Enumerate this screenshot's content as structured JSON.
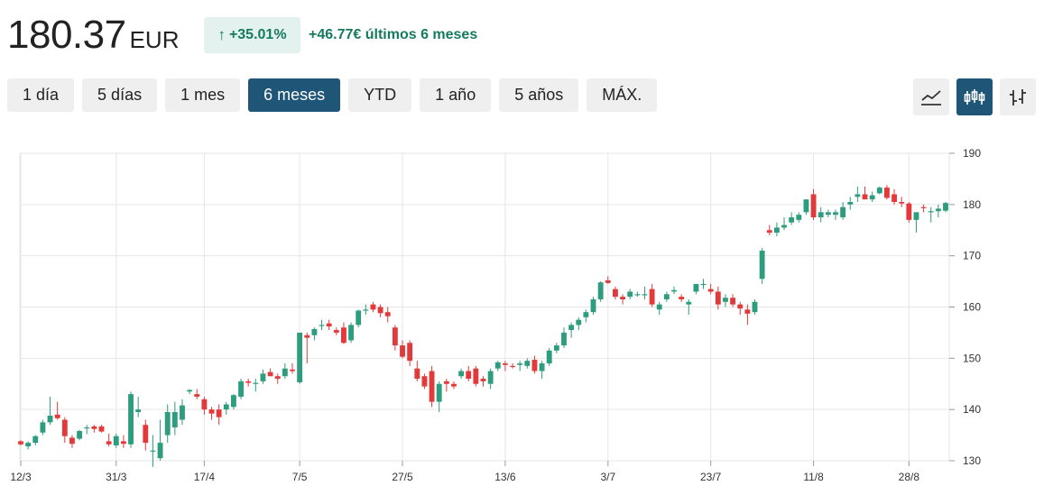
{
  "header": {
    "price": "180.37",
    "currency": "EUR",
    "change_pct": "+35.01%",
    "change_arrow": "↑",
    "change_text": "+46.77€ últimos 6 meses"
  },
  "ranges": [
    {
      "label": "1 día",
      "active": false
    },
    {
      "label": "5 días",
      "active": false
    },
    {
      "label": "1 mes",
      "active": false
    },
    {
      "label": "6 meses",
      "active": true
    },
    {
      "label": "YTD",
      "active": false
    },
    {
      "label": "1 año",
      "active": false
    },
    {
      "label": "5 años",
      "active": false
    },
    {
      "label": "MÁX.",
      "active": false
    }
  ],
  "views": [
    {
      "icon": "line-chart-icon",
      "active": false
    },
    {
      "icon": "candlestick-chart-icon",
      "active": true
    },
    {
      "icon": "ohlc-chart-icon",
      "active": false
    }
  ],
  "colors": {
    "up": "#2e9c7e",
    "down": "#e23a3a",
    "accent": "#1f5577",
    "positive_text": "#167a5e"
  },
  "chart_data": {
    "type": "candlestick",
    "y_range": [
      130,
      190
    ],
    "y_ticks": [
      130,
      140,
      150,
      160,
      170,
      180,
      190
    ],
    "x_ticks": [
      {
        "label": "12/3",
        "index": 0
      },
      {
        "label": "31/3",
        "index": 13
      },
      {
        "label": "17/4",
        "index": 25
      },
      {
        "label": "7/5",
        "index": 38
      },
      {
        "label": "27/5",
        "index": 52
      },
      {
        "label": "13/6",
        "index": 66
      },
      {
        "label": "3/7",
        "index": 80
      },
      {
        "label": "23/7",
        "index": 94
      },
      {
        "label": "11/8",
        "index": 108
      },
      {
        "label": "28/8",
        "index": 121
      }
    ],
    "candles": [
      [
        133.8,
        134,
        133,
        133.2
      ],
      [
        132.8,
        133.8,
        132.2,
        133.5
      ],
      [
        133.5,
        135,
        133,
        134.8
      ],
      [
        135.5,
        138,
        135,
        137.5
      ],
      [
        137.5,
        142.5,
        137,
        138.8
      ],
      [
        139,
        141.5,
        138,
        138.3
      ],
      [
        138,
        138.5,
        133.5,
        134.8
      ],
      [
        134.5,
        135,
        132.5,
        133.3
      ],
      [
        134.3,
        136,
        134,
        135.8
      ],
      [
        136.5,
        137,
        135.2,
        136.5
      ],
      [
        136.7,
        137,
        135.5,
        136.2
      ],
      [
        136.7,
        137,
        135.5,
        135.7
      ],
      [
        133.8,
        135.3,
        132.8,
        133.2
      ],
      [
        133,
        135.3,
        132.5,
        134.8
      ],
      [
        133.8,
        135,
        132.5,
        133.3
      ],
      [
        133.2,
        143.5,
        132.5,
        143
      ],
      [
        139.5,
        142.5,
        138.5,
        140
      ],
      [
        137,
        138,
        132,
        133.5
      ],
      [
        131.8,
        135,
        128.8,
        132
      ],
      [
        130.5,
        138,
        130,
        133.5
      ],
      [
        135,
        141,
        133.5,
        139.5
      ],
      [
        136.5,
        141.5,
        135,
        139.5
      ],
      [
        138,
        142,
        137,
        140.8
      ],
      [
        143.5,
        144,
        143,
        143.8
      ],
      [
        143,
        144,
        142,
        142.5
      ],
      [
        142,
        142.5,
        139,
        140
      ],
      [
        140,
        140.5,
        138,
        139.2
      ],
      [
        140,
        141,
        137,
        138.5
      ],
      [
        140,
        141.5,
        139,
        141
      ],
      [
        140.5,
        143,
        140,
        142.8
      ],
      [
        142.5,
        146,
        142,
        145.5
      ],
      [
        145.5,
        146,
        144.5,
        145.2
      ],
      [
        145,
        146,
        143.5,
        145.2
      ],
      [
        145.5,
        147.8,
        145,
        147
      ],
      [
        147.3,
        148,
        146.5,
        146.5
      ],
      [
        146.5,
        147,
        145,
        146
      ],
      [
        146.5,
        149,
        146,
        148
      ],
      [
        147.8,
        149,
        147,
        147.5
      ],
      [
        145.3,
        155,
        145,
        155
      ],
      [
        154.5,
        155,
        149,
        154
      ],
      [
        154.5,
        156,
        153.5,
        155.7
      ],
      [
        156.5,
        157.5,
        155.5,
        156.5
      ],
      [
        156.8,
        157.5,
        155.5,
        156.2
      ],
      [
        155.5,
        156,
        154.5,
        155
      ],
      [
        156,
        157,
        152.8,
        153
      ],
      [
        153.5,
        157,
        153,
        156.5
      ],
      [
        156.5,
        159.5,
        156,
        159.3
      ],
      [
        159.5,
        160.5,
        158.5,
        159.5
      ],
      [
        160.5,
        161,
        159,
        159.5
      ],
      [
        160,
        160.5,
        158,
        158.8
      ],
      [
        159,
        160,
        157,
        158.2
      ],
      [
        156,
        156.5,
        151.5,
        152.5
      ],
      [
        152.5,
        153.5,
        150,
        150.3
      ],
      [
        153,
        153.5,
        148.5,
        149.5
      ],
      [
        148,
        149.5,
        145.5,
        146
      ],
      [
        146.5,
        147,
        144,
        144.5
      ],
      [
        147.5,
        148.5,
        140.5,
        141.5
      ],
      [
        141.5,
        145.5,
        139.5,
        145
      ],
      [
        145.5,
        146,
        143.5,
        145
      ],
      [
        145,
        145.5,
        144,
        144.5
      ],
      [
        146.5,
        148,
        146,
        147.5
      ],
      [
        147.5,
        148.5,
        145.5,
        146
      ],
      [
        148,
        148.5,
        144.5,
        145
      ],
      [
        146,
        146.5,
        144.5,
        145.5
      ],
      [
        145,
        148,
        144,
        147.5
      ],
      [
        148,
        149.5,
        147.5,
        149.2
      ],
      [
        149,
        149.5,
        147.5,
        148.7
      ],
      [
        148.5,
        149,
        148,
        148.3
      ],
      [
        148.7,
        149.5,
        147.5,
        149
      ],
      [
        148.5,
        150,
        148,
        149.5
      ],
      [
        149.7,
        150.5,
        147,
        147.5
      ],
      [
        147.5,
        149.5,
        146,
        149
      ],
      [
        149,
        152,
        148.5,
        151.5
      ],
      [
        151.5,
        153,
        151,
        152.5
      ],
      [
        152.5,
        156,
        152,
        155
      ],
      [
        155.5,
        157,
        154,
        156.5
      ],
      [
        156.5,
        158,
        155.5,
        157.5
      ],
      [
        158,
        159.5,
        157,
        159
      ],
      [
        159,
        162,
        158.5,
        161.5
      ],
      [
        161.5,
        165,
        161,
        164.8
      ],
      [
        165.2,
        166,
        164.5,
        164.7
      ],
      [
        163.5,
        164,
        161.5,
        162
      ],
      [
        162,
        162.5,
        160.5,
        161.5
      ],
      [
        162,
        163.5,
        161.5,
        163
      ],
      [
        162.5,
        163,
        162,
        162.5
      ],
      [
        162.5,
        164,
        161.5,
        162.5
      ],
      [
        163.5,
        164.5,
        160,
        160.5
      ],
      [
        159.5,
        161,
        158.5,
        160.5
      ],
      [
        161.5,
        163,
        161,
        162.5
      ],
      [
        163,
        164,
        162.5,
        163.3
      ],
      [
        162,
        162.5,
        161,
        161.5
      ],
      [
        160.5,
        161.5,
        158.5,
        161
      ],
      [
        163,
        164.5,
        162.5,
        164.5
      ],
      [
        164.5,
        165.5,
        163.5,
        164.5
      ],
      [
        163.5,
        164.5,
        162.5,
        163
      ],
      [
        163,
        164,
        159.5,
        160.5
      ],
      [
        161,
        162.5,
        160,
        161.8
      ],
      [
        161.8,
        162.5,
        160,
        160.5
      ],
      [
        160.5,
        161,
        158.5,
        159.7
      ],
      [
        159.5,
        160.5,
        156.5,
        158.7
      ],
      [
        159,
        161.5,
        158.5,
        161
      ],
      [
        165.5,
        171.5,
        164.5,
        171
      ],
      [
        175,
        176,
        174,
        174.5
      ],
      [
        174.5,
        176.5,
        173.8,
        175.5
      ],
      [
        175.5,
        177.5,
        175,
        176
      ],
      [
        176.5,
        178.5,
        176,
        177.5
      ],
      [
        177,
        178.5,
        176.5,
        178
      ],
      [
        178.5,
        181,
        178,
        181
      ],
      [
        182,
        183,
        177,
        177.5
      ],
      [
        177.5,
        179.5,
        176.5,
        178.5
      ],
      [
        178,
        179,
        177.5,
        178.5
      ],
      [
        178,
        179,
        177,
        178.5
      ],
      [
        177.5,
        180.5,
        177,
        179.5
      ],
      [
        180,
        181.5,
        179,
        180.5
      ],
      [
        181.5,
        183.5,
        180.5,
        182
      ],
      [
        182,
        183.5,
        181,
        181
      ],
      [
        181,
        182.5,
        180.5,
        181.8
      ],
      [
        182.2,
        183.5,
        182,
        183.3
      ],
      [
        183.3,
        183.8,
        181,
        181.3
      ],
      [
        182,
        183,
        180,
        180.5
      ],
      [
        180.5,
        181.5,
        179.5,
        180.2
      ],
      [
        180.2,
        180.5,
        176.5,
        177
      ],
      [
        177,
        178.5,
        174.5,
        178.5
      ],
      [
        179.5,
        180,
        178.5,
        179.3
      ],
      [
        178.5,
        179.5,
        176.5,
        178.7
      ],
      [
        178.7,
        180,
        177.5,
        179.2
      ],
      [
        178.8,
        180.5,
        178.5,
        180.3
      ]
    ]
  }
}
